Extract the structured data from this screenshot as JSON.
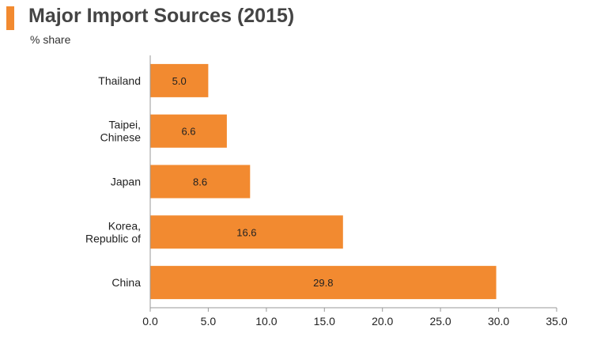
{
  "title": "Major Import Sources (2015)",
  "subtitle": "% share",
  "colors": {
    "accent": "#f28a30",
    "bar": "#f28a30",
    "axis": "#999999",
    "text": "#222222"
  },
  "chart_data": {
    "type": "bar",
    "orientation": "horizontal",
    "categories": [
      [
        "Thailand"
      ],
      [
        "Taipei,",
        "Chinese"
      ],
      [
        "Japan"
      ],
      [
        "Korea,",
        "Republic of"
      ],
      [
        "China"
      ]
    ],
    "values": [
      5.0,
      6.6,
      8.6,
      16.6,
      29.8
    ],
    "value_labels": [
      "5.0",
      "6.6",
      "8.6",
      "16.6",
      "29.8"
    ],
    "xlim": [
      0,
      35
    ],
    "xticks": [
      "0.0",
      "5.0",
      "10.0",
      "15.0",
      "20.0",
      "25.0",
      "30.0",
      "35.0"
    ],
    "grid": false,
    "legend": "none"
  }
}
